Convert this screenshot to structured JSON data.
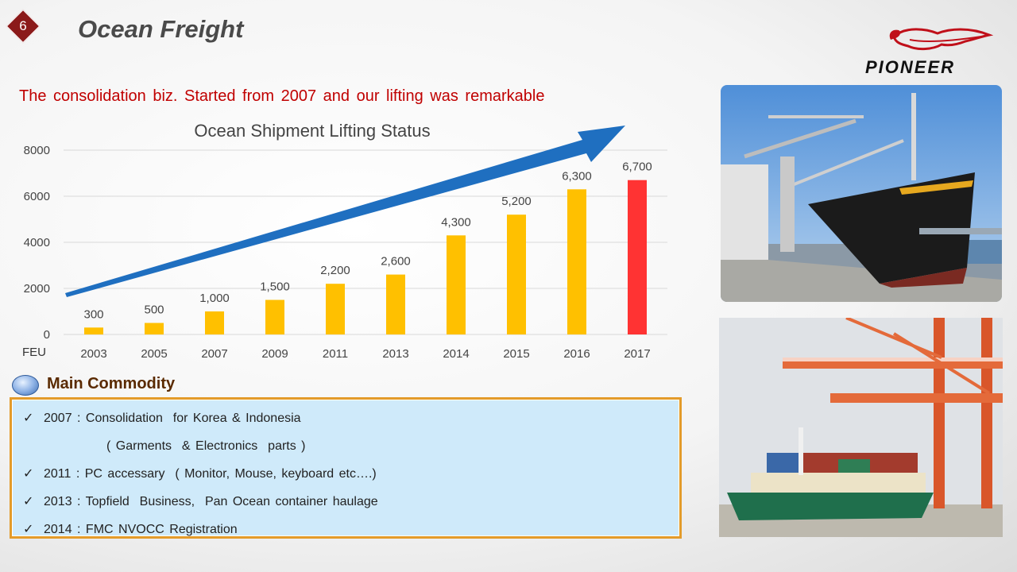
{
  "header": {
    "slide_number": "6",
    "title": "Ocean Freight",
    "subtitle": "The consolidation biz. Started from 2007 and our lifting was remarkable",
    "logo_text": "PIONEER"
  },
  "chart_data": {
    "type": "bar",
    "title": "Ocean Shipment Lifting Status",
    "ylabel": "FEU",
    "xlabel": "",
    "categories": [
      "2003",
      "2005",
      "2007",
      "2009",
      "2011",
      "2013",
      "2014",
      "2015",
      "2016",
      "2017"
    ],
    "values": [
      300,
      500,
      1000,
      1500,
      2200,
      2600,
      4300,
      5200,
      6300,
      6700
    ],
    "data_labels": [
      "300",
      "500",
      "1,000",
      "1,500",
      "2,200",
      "2,600",
      "4,300",
      "5,200",
      "6,300",
      "6,700"
    ],
    "ylim": [
      0,
      8000
    ],
    "yticks": [
      "0",
      "2000",
      "4000",
      "6000",
      "8000"
    ],
    "grid": true,
    "bar_color": "#ffc000",
    "highlight_color": "#ff3333",
    "highlight_category": "2017",
    "trend_arrow_color": "#1f6fc0"
  },
  "commodity": {
    "title": "Main Commodity",
    "check": "✓",
    "items": [
      "2007 : Consolidation  for Korea & Indonesia",
      "( Garments  & Electronics  parts )",
      "2011 : PC accessary  ( Monitor, Mouse, keyboard etc….)",
      "2013 : Topfield  Business,  Pan Ocean container haulage",
      "2014 : FMC NVOCC Registration"
    ]
  }
}
